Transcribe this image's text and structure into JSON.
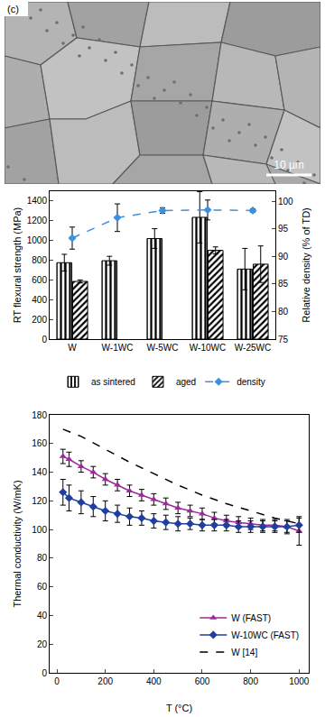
{
  "image_panel": {
    "label": "(c)",
    "scale_bar": "10 µm"
  },
  "chart_data": [
    {
      "type": "bar",
      "categories": [
        "W",
        "W-1WC",
        "W-5WC",
        "W-10WC",
        "W-25WC"
      ],
      "y_label": "RT flexural strength (MPa)",
      "y2_label": "Relative density (% of TD)",
      "ylim": [
        0,
        1500
      ],
      "yticks": [
        0,
        200,
        400,
        600,
        800,
        1000,
        1200,
        1400
      ],
      "y2lim": [
        75,
        101.8
      ],
      "y2ticks": [
        75,
        80,
        85,
        90,
        95,
        100
      ],
      "grid": false,
      "legend": "bottom",
      "series": [
        {
          "name": "as sintered",
          "type": "bar",
          "color": "#3a3a3a",
          "marker": "vertical-hatch",
          "values": [
            775,
            795,
            1020,
            1235,
            710
          ],
          "errors": [
            85,
            45,
            100,
            260,
            210
          ]
        },
        {
          "name": "aged",
          "type": "bar",
          "color": "#8a8a8a",
          "marker": "diagonal-hatch",
          "values": [
            585,
            null,
            null,
            900,
            760
          ],
          "errors": [
            15,
            null,
            null,
            35,
            185
          ]
        },
        {
          "name": "density",
          "type": "line",
          "axis": "y2",
          "color": "#3d8fe0",
          "marker": "diamond",
          "line_style": "dash",
          "values": [
            93.3,
            97.0,
            98.3,
            98.4,
            98.3
          ],
          "errors": [
            2.0,
            2.5,
            0.5,
            1.8,
            0.3
          ]
        }
      ]
    },
    {
      "type": "line",
      "x_label": "T (°C)",
      "y_label": "Thermal conductivity (W/mK)",
      "xlim": [
        -30,
        1040
      ],
      "xticks": [
        0,
        200,
        400,
        600,
        800,
        1000
      ],
      "ylim": [
        0,
        180
      ],
      "yticks": [
        0,
        20,
        40,
        60,
        80,
        100,
        120,
        140,
        160,
        180
      ],
      "grid": false,
      "legend": "lower right",
      "series": [
        {
          "name": "W (FAST)",
          "color": "#9b2a9b",
          "marker": "triangle-up",
          "line_style": "solid",
          "x": [
            25,
            50,
            100,
            150,
            200,
            250,
            300,
            350,
            400,
            450,
            500,
            550,
            600,
            650,
            700,
            750,
            800,
            850,
            900,
            950,
            1000
          ],
          "values": [
            151,
            149,
            144,
            140,
            135,
            131,
            127,
            124,
            121,
            118,
            115,
            113,
            111,
            108,
            106,
            105,
            104,
            103,
            103,
            102,
            99
          ],
          "errors": [
            5,
            5,
            4,
            4,
            4,
            4,
            4,
            4,
            4,
            4,
            4,
            4,
            4,
            4,
            4,
            4,
            4,
            4,
            4,
            5,
            10
          ]
        },
        {
          "name": "W-10WC (FAST)",
          "color": "#1f3fa0",
          "marker": "diamond",
          "line_style": "solid",
          "x": [
            25,
            50,
            100,
            150,
            200,
            250,
            300,
            350,
            400,
            450,
            500,
            550,
            600,
            650,
            700,
            750,
            800,
            850,
            900,
            950,
            1000
          ],
          "values": [
            126,
            122,
            119,
            116,
            113,
            111,
            109,
            108,
            106,
            105,
            104,
            104,
            103,
            103,
            103,
            102,
            102,
            102,
            102,
            102,
            103
          ],
          "errors": [
            9,
            9,
            8,
            7,
            7,
            6,
            6,
            5,
            5,
            5,
            5,
            4,
            4,
            4,
            4,
            4,
            4,
            4,
            4,
            4,
            5
          ]
        },
        {
          "name": "W [14]",
          "color": "#000000",
          "marker": "none",
          "line_style": "dash",
          "x": [
            25,
            100,
            200,
            300,
            400,
            500,
            600,
            700,
            800,
            900,
            1000
          ],
          "values": [
            170,
            165,
            156,
            147,
            139,
            131,
            124,
            118,
            113,
            108,
            104
          ]
        }
      ]
    }
  ]
}
